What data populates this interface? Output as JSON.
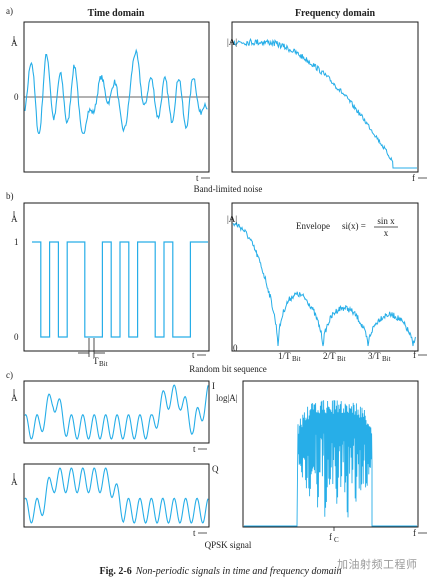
{
  "headers": {
    "time_domain": "Time domain",
    "frequency_domain": "Frequency domain"
  },
  "section_labels": {
    "a": "a)",
    "b": "b)",
    "c": "c)"
  },
  "section_titles": {
    "a": "Band-limited noise",
    "b": "Random bit sequence",
    "c": "QPSK signal"
  },
  "axis_labels": {
    "a_time_y": "A",
    "a_time_zero": "0",
    "a_time_x": "t",
    "a_freq_y": "|A|",
    "a_freq_x": "f",
    "b_time_y": "A",
    "b_time_one": "1",
    "b_time_zero": "0",
    "b_time_x": "t",
    "b_tbit": "T",
    "b_tbit_sub": "Bit",
    "b_freq_y": "|A|",
    "b_freq_zero": "0",
    "b_freq_x": "f",
    "c_i_y": "A",
    "c_i_x": "t",
    "c_i_label": "I",
    "c_q_y": "A",
    "c_q_x": "t",
    "c_q_label": "Q",
    "c_freq_y": "log|A|",
    "c_freq_x": "f",
    "c_fc": "f",
    "c_fc_sub": "C"
  },
  "freq_ticks_b": [
    {
      "main": "1/T",
      "sub": "Bit"
    },
    {
      "main": "2/T",
      "sub": "Bit"
    },
    {
      "main": "3/T",
      "sub": "Bit"
    }
  ],
  "envelope": {
    "label": "Envelope",
    "lhs": "si(x) =",
    "numerator": "sin x",
    "denominator": "x"
  },
  "bit_sequence": [
    1,
    0,
    1,
    0,
    1,
    1,
    0,
    0,
    1,
    0,
    1,
    0,
    1,
    1,
    0,
    1,
    0,
    0,
    1,
    1
  ],
  "caption": {
    "number": "Fig. 2-6",
    "text": "Non-periodic signals in time and frequency domain"
  },
  "watermark": "加油射频工程师",
  "colors": {
    "signal": "#27aee8",
    "frame": "#1a1a1a"
  }
}
